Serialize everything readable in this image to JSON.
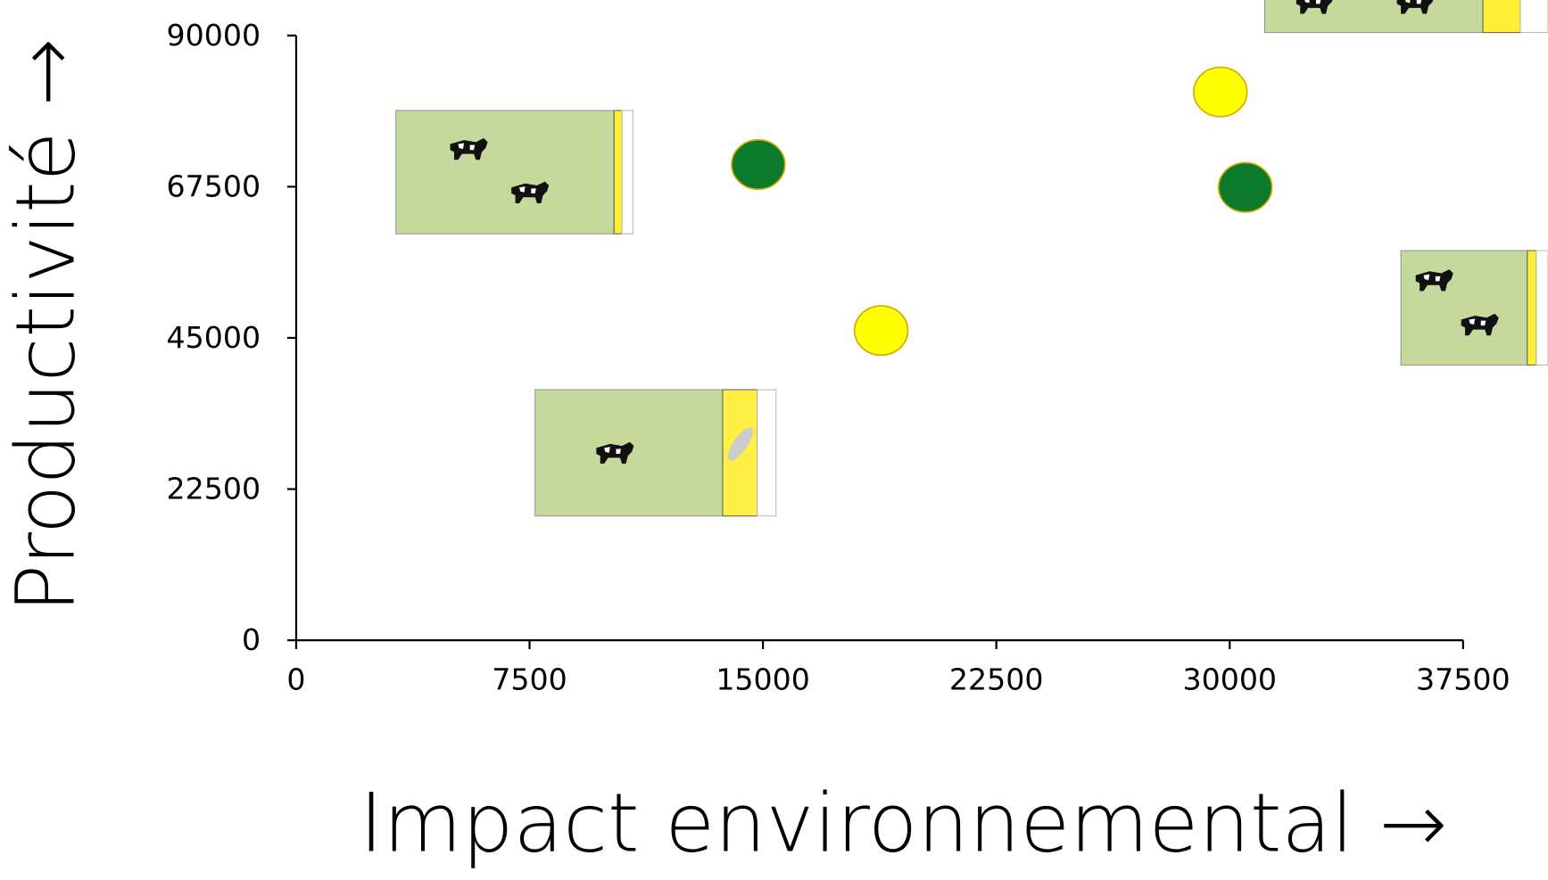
{
  "chart_data": {
    "type": "scatter",
    "xlabel": "Impact environnemental →",
    "ylabel": "Productivité →",
    "xlim": [
      0,
      37500
    ],
    "xticks": [
      0,
      7500,
      15000,
      22500,
      30000,
      37500
    ],
    "ylim": [
      0,
      90000
    ],
    "yticks": [
      0,
      22500,
      45000,
      67500,
      90000
    ],
    "series": [
      {
        "color": "#0b7a2b",
        "x": [
          14850,
          30500
        ],
        "values": [
          70800,
          67400
        ]
      },
      {
        "color": "#ffff00",
        "x": [
          18800,
          29700
        ],
        "values": [
          46100,
          81600
        ]
      }
    ]
  }
}
